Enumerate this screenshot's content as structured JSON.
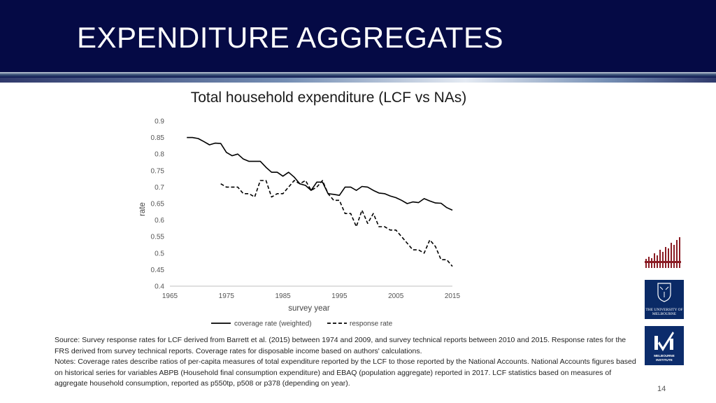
{
  "slide": {
    "title": "EXPENDITURE AGGREGATES",
    "page_number": "14"
  },
  "notes": {
    "source": "Source: Survey response rates for LCF derived from Barrett et al. (2015) between 1974 and 2009, and survey technical reports between 2010 and 2015. Response rates for the FRS derived from survey technical reports. Coverage rates for disposable income based on authors' calculations.",
    "notes": "Notes: Coverage rates describe ratios of per-capita measures of total expenditure reported by the LCF to those reported by the National Accounts.  National Accounts figures based on historical series for variables ABPB (Household final consumption expenditure) and EBAQ (population aggregate) reported in 2017. LCF statistics based on measures of aggregate household consumption, reported as p550tp, p508 or p378 (depending on year)."
  },
  "logos": {
    "university_line1": "THE UNIVERSITY OF",
    "university_line2": "MELBOURNE",
    "institute_line1": "MELBOURNE",
    "institute_line2": "INSTITUTE"
  },
  "chart_data": {
    "type": "line",
    "title": "Total household expenditure (LCF vs NAs)",
    "xlabel": "survey year",
    "ylabel": "rate",
    "xlim": [
      1965,
      2015
    ],
    "ylim": [
      0.4,
      0.9
    ],
    "xticks": [
      1965,
      1975,
      1985,
      1995,
      2005,
      2015
    ],
    "yticks": [
      0.4,
      0.45,
      0.5,
      0.55,
      0.6,
      0.65,
      0.7,
      0.75,
      0.8,
      0.85,
      0.9
    ],
    "ytick_labels": [
      "0.4",
      "0.45",
      "0.5",
      "0.55",
      "0.6",
      "0.65",
      "0.7",
      "0.75",
      "0.8",
      "0.85",
      "0.9"
    ],
    "legend_position": "bottom",
    "series": [
      {
        "name": "coverage rate (weighted)",
        "style": "solid",
        "color": "#000000",
        "x": [
          1968,
          1969,
          1970,
          1971,
          1972,
          1973,
          1974,
          1975,
          1976,
          1977,
          1978,
          1979,
          1980,
          1981,
          1982,
          1983,
          1984,
          1985,
          1986,
          1987,
          1988,
          1989,
          1990,
          1991,
          1992,
          1993,
          1994,
          1995,
          1996,
          1997,
          1998,
          1999,
          2000,
          2001,
          2002,
          2003,
          2004,
          2005,
          2006,
          2007,
          2008,
          2009,
          2010,
          2011,
          2012,
          2013,
          2014,
          2015
        ],
        "y": [
          0.85,
          0.85,
          0.847,
          0.838,
          0.828,
          0.833,
          0.832,
          0.805,
          0.795,
          0.8,
          0.785,
          0.778,
          0.778,
          0.778,
          0.76,
          0.745,
          0.745,
          0.733,
          0.745,
          0.73,
          0.71,
          0.705,
          0.69,
          0.715,
          0.715,
          0.68,
          0.678,
          0.675,
          0.7,
          0.7,
          0.69,
          0.702,
          0.7,
          0.69,
          0.682,
          0.68,
          0.673,
          0.668,
          0.66,
          0.65,
          0.655,
          0.653,
          0.665,
          0.658,
          0.652,
          0.651,
          0.638,
          0.63
        ]
      },
      {
        "name": "response rate",
        "style": "dashed",
        "color": "#000000",
        "x": [
          1974,
          1975,
          1976,
          1977,
          1978,
          1979,
          1980,
          1981,
          1982,
          1983,
          1984,
          1985,
          1986,
          1987,
          1988,
          1989,
          1990,
          1991,
          1992,
          1993,
          1994,
          1995,
          1996,
          1997,
          1998,
          1999,
          2000,
          2001,
          2002,
          2003,
          2004,
          2005,
          2006,
          2007,
          2008,
          2009,
          2010,
          2011,
          2012,
          2013,
          2014,
          2015
        ],
        "y": [
          0.71,
          0.7,
          0.7,
          0.7,
          0.68,
          0.68,
          0.67,
          0.72,
          0.72,
          0.67,
          0.68,
          0.68,
          0.7,
          0.72,
          0.71,
          0.72,
          0.69,
          0.7,
          0.72,
          0.68,
          0.66,
          0.66,
          0.62,
          0.62,
          0.58,
          0.63,
          0.59,
          0.62,
          0.58,
          0.58,
          0.57,
          0.57,
          0.55,
          0.53,
          0.51,
          0.51,
          0.5,
          0.54,
          0.52,
          0.48,
          0.48,
          0.46
        ]
      }
    ]
  }
}
